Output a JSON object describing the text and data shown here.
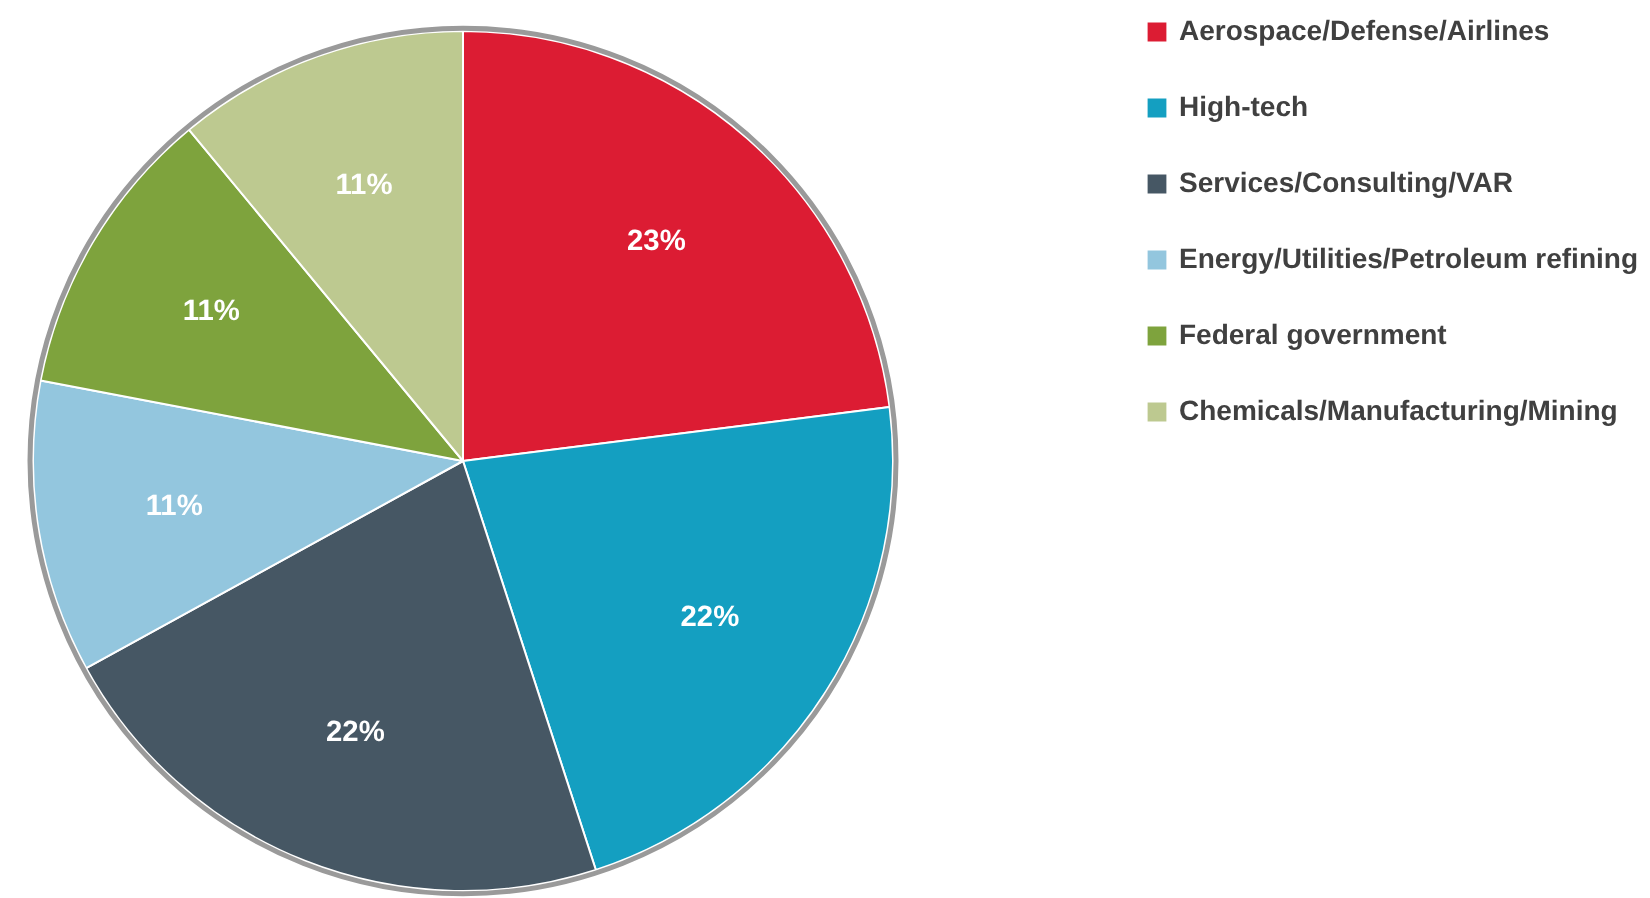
{
  "chart_data": {
    "type": "pie",
    "categories": [
      "Aerospace/Defense/Airlines",
      "High-tech",
      "Services/Consulting/VAR",
      "Energy/Utilities/Petroleum refining",
      "Federal government",
      "Chemicals/Manufacturing/Mining"
    ],
    "values": [
      23,
      22,
      22,
      11,
      11,
      11
    ],
    "colors": [
      "#dc1c33",
      "#149fc1",
      "#465764",
      "#93c6de",
      "#7ea33d",
      "#bdc990"
    ],
    "value_labels": [
      "23%",
      "22%",
      "22%",
      "11%",
      "11%",
      "11%"
    ],
    "legend": "right"
  }
}
